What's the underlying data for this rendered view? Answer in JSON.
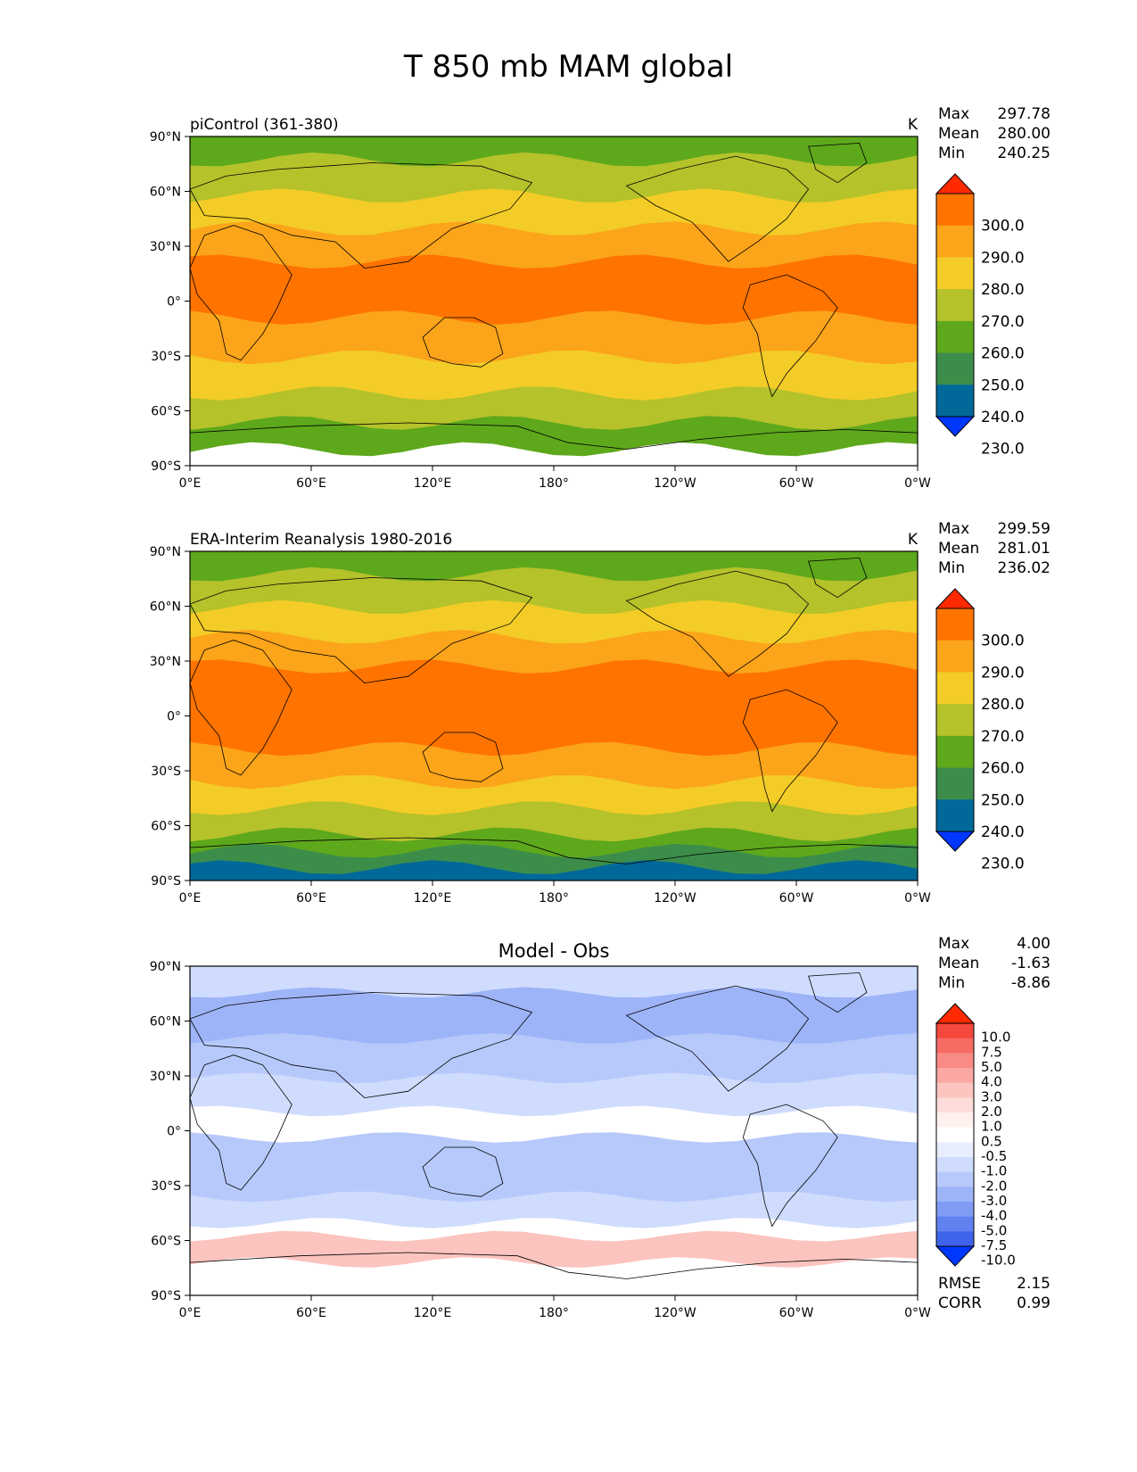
{
  "figure": {
    "title": "T 850 mb MAM global"
  },
  "axes": {
    "lat_ticks": [
      "90°N",
      "60°N",
      "30°N",
      "0°",
      "30°S",
      "60°S",
      "90°S"
    ],
    "lon_ticks": [
      "0°E",
      "60°E",
      "120°E",
      "180°",
      "120°W",
      "60°W",
      "0°W"
    ]
  },
  "panels": [
    {
      "title": "piControl (361-380)",
      "units": "K",
      "stats": [
        {
          "label": "Max",
          "value": "297.78"
        },
        {
          "label": "Mean",
          "value": "280.00"
        },
        {
          "label": "Min",
          "value": "240.25"
        }
      ],
      "colorbar": {
        "labels": [
          "300.0",
          "290.0",
          "280.0",
          "270.0",
          "260.0",
          "250.0",
          "240.0",
          "230.0"
        ],
        "colors": [
          "#ff2a00",
          "#ff7300",
          "#fca41a",
          "#f3cc27",
          "#b5c22a",
          "#5ea81c",
          "#3c8d4a",
          "#00699a",
          "#0037ff"
        ]
      }
    },
    {
      "title": "ERA-Interim Reanalysis 1980-2016",
      "units": "K",
      "stats": [
        {
          "label": "Max",
          "value": "299.59"
        },
        {
          "label": "Mean",
          "value": "281.01"
        },
        {
          "label": "Min",
          "value": "236.02"
        }
      ],
      "colorbar": {
        "labels": [
          "300.0",
          "290.0",
          "280.0",
          "270.0",
          "260.0",
          "250.0",
          "240.0",
          "230.0"
        ],
        "colors": [
          "#ff2a00",
          "#ff7300",
          "#fca41a",
          "#f3cc27",
          "#b5c22a",
          "#5ea81c",
          "#3c8d4a",
          "#00699a",
          "#0037ff"
        ]
      }
    },
    {
      "title": "Model - Obs",
      "units": "",
      "stats": [
        {
          "label": "Max",
          "value": "4.00"
        },
        {
          "label": "Mean",
          "value": "-1.63"
        },
        {
          "label": "Min",
          "value": "-8.86"
        }
      ],
      "colorbar": {
        "labels": [
          "10.0",
          "7.5",
          "5.0",
          "4.0",
          "3.0",
          "2.0",
          "1.0",
          "0.5",
          "-0.5",
          "-1.0",
          "-2.0",
          "-3.0",
          "-4.0",
          "-5.0",
          "-7.5",
          "-10.0"
        ],
        "colors": [
          "#ff2a00",
          "#f5473c",
          "#f76b65",
          "#f98b84",
          "#fba8a2",
          "#fcc4bf",
          "#fddcd9",
          "#fff0ee",
          "#ffffff",
          "#e8eefe",
          "#cfdcfd",
          "#b7c9fb",
          "#9db4f8",
          "#7f9bf4",
          "#5f82f0",
          "#3f64ec",
          "#0037ff"
        ]
      },
      "metrics": [
        {
          "label": "RMSE",
          "value": "2.15"
        },
        {
          "label": "CORR",
          "value": "0.99"
        }
      ]
    }
  ],
  "colors": {
    "land_outline": "#000000",
    "missing": "#ffffff"
  }
}
